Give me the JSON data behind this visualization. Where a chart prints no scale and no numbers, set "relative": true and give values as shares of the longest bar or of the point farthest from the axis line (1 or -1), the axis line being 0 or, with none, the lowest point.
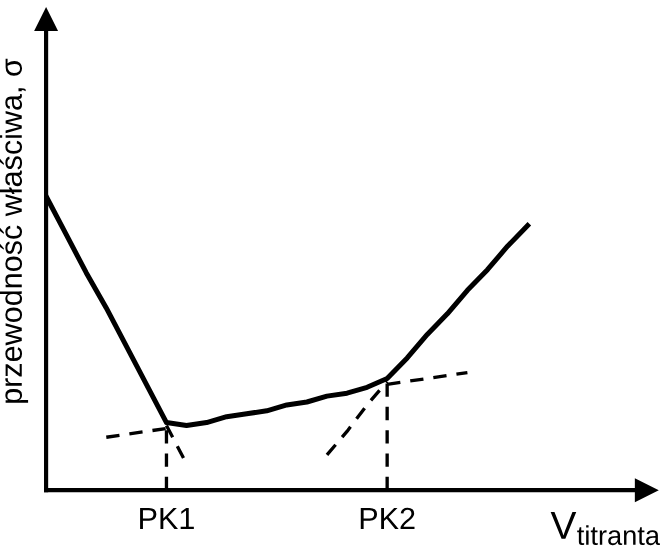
{
  "chart_data": {
    "type": "line",
    "relative": true,
    "xlabel": "V$_{titranta}$",
    "ylabel": "przewodność właściwa, σ",
    "grid": false,
    "legend": false,
    "categories": [
      null,
      null,
      null,
      null,
      null,
      null,
      "PK1",
      null,
      null,
      null,
      null,
      null,
      null,
      null,
      null,
      null,
      null,
      "PK2",
      null,
      null,
      null,
      null,
      null,
      null,
      null,
      null,
      null,
      null,
      null,
      null
    ],
    "ref_lines": [
      {
        "axis": "x",
        "value": "PK1",
        "color": "#000000",
        "line_style": "dashed"
      },
      {
        "axis": "x",
        "value": "PK2",
        "color": "#000000",
        "line_style": "dashed"
      }
    ],
    "series": [
      {
        "color": "#000000",
        "line_style": "solid",
        "values": [
          1.0,
          0.87,
          0.74,
          0.62,
          0.49,
          0.36,
          0.23,
          0.22,
          0.23,
          0.25,
          0.26,
          0.27,
          0.29,
          0.3,
          0.32,
          0.33,
          0.35,
          0.38,
          0.45,
          0.53,
          0.6,
          0.68,
          0.75,
          0.83,
          0.9,
          null,
          null,
          null,
          null,
          null
        ]
      },
      {
        "color": "#000000",
        "line_style": "dashed",
        "values": [
          null,
          null,
          null,
          0.18,
          0.19,
          0.2,
          0.21,
          null,
          null,
          null,
          null,
          null,
          null,
          null,
          null,
          null,
          null,
          null,
          null,
          null,
          null,
          null,
          null,
          null,
          null,
          null,
          null,
          null,
          null,
          null
        ]
      },
      {
        "color": "#000000",
        "line_style": "dashed",
        "values": [
          null,
          null,
          null,
          null,
          null,
          null,
          0.22,
          0.09,
          null,
          null,
          null,
          null,
          null,
          null,
          null,
          null,
          null,
          null,
          null,
          null,
          null,
          null,
          null,
          null,
          null,
          null,
          null,
          null,
          null,
          null
        ]
      },
      {
        "color": "#000000",
        "line_style": "dashed",
        "values": [
          null,
          null,
          null,
          null,
          null,
          null,
          null,
          null,
          null,
          null,
          null,
          null,
          null,
          null,
          null,
          null,
          null,
          0.36,
          0.37,
          0.38,
          0.39,
          0.4,
          null,
          null,
          null,
          null,
          null,
          null,
          null,
          null
        ]
      },
      {
        "color": "#000000",
        "line_style": "dashed",
        "values": [
          null,
          null,
          null,
          null,
          null,
          null,
          null,
          null,
          null,
          null,
          null,
          null,
          null,
          null,
          0.12,
          0.2,
          0.29,
          0.37,
          null,
          null,
          null,
          null,
          null,
          null,
          null,
          null,
          null,
          null,
          null,
          null
        ]
      }
    ]
  }
}
